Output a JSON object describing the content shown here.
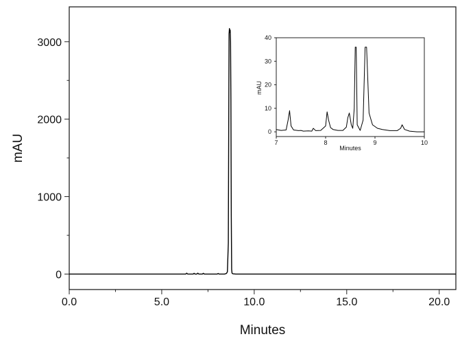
{
  "chart_data": [
    {
      "type": "line",
      "xlabel": "Minutes",
      "ylabel": "mAU",
      "xlim": [
        0,
        20.9
      ],
      "ylim": [
        -200,
        3450
      ],
      "xticks": [
        0.0,
        5.0,
        10.0,
        15.0,
        20.0
      ],
      "xtick_labels": [
        "0.0",
        "5.0",
        "10.0",
        "15.0",
        "20.0"
      ],
      "yticks": [
        0,
        1000,
        2000,
        3000
      ],
      "ytick_labels": [
        "0",
        "1000",
        "2000",
        "3000"
      ],
      "grid": false,
      "series": [
        {
          "x": [
            0.0,
            6.2,
            6.3,
            6.35,
            6.4,
            6.7,
            6.75,
            6.8,
            6.9,
            6.95,
            7.0,
            7.2,
            7.25,
            7.3,
            8.0,
            8.05,
            8.1,
            8.4,
            8.5,
            8.55,
            8.6,
            8.62,
            8.64,
            8.66,
            8.68,
            8.7,
            8.72,
            8.74,
            8.76,
            8.78,
            8.8,
            8.85,
            9.0,
            10.0,
            15.0,
            20.9
          ],
          "y": [
            0,
            0,
            0,
            12,
            0,
            0,
            10,
            0,
            0,
            12,
            0,
            0,
            10,
            0,
            0,
            8,
            0,
            0,
            8,
            30,
            400,
            1800,
            3100,
            3170,
            3120,
            3150,
            3000,
            2250,
            750,
            60,
            12,
            3,
            0,
            0,
            0,
            0
          ]
        }
      ]
    },
    {
      "type": "line",
      "xlabel": "Minutes",
      "ylabel": "mAU",
      "xlim": [
        7,
        10
      ],
      "ylim": [
        -2,
        40
      ],
      "xticks": [
        7,
        8,
        9,
        10
      ],
      "xtick_labels": [
        "7",
        "8",
        "9",
        "10"
      ],
      "yticks": [
        0,
        10,
        20,
        30,
        40
      ],
      "ytick_labels": [
        "0",
        "10",
        "20",
        "30",
        "40"
      ],
      "grid": false,
      "series": [
        {
          "x": [
            7.0,
            7.1,
            7.2,
            7.24,
            7.27,
            7.3,
            7.35,
            7.45,
            7.5,
            7.55,
            7.65,
            7.72,
            7.75,
            7.8,
            7.9,
            8.0,
            8.03,
            8.06,
            8.1,
            8.15,
            8.25,
            8.35,
            8.42,
            8.45,
            8.48,
            8.52,
            8.55,
            8.58,
            8.6,
            8.62,
            8.64,
            8.7,
            8.76,
            8.8,
            8.83,
            8.88,
            8.95,
            9.05,
            9.15,
            9.3,
            9.45,
            9.52,
            9.55,
            9.6,
            9.7,
            9.85,
            10.0
          ],
          "y": [
            1.0,
            0.6,
            0.8,
            5.0,
            9.0,
            2.5,
            0.8,
            0.5,
            0.6,
            0.3,
            0.4,
            0.3,
            1.5,
            0.5,
            0.6,
            2.5,
            8.5,
            5.0,
            1.8,
            1.0,
            0.6,
            0.6,
            2.0,
            6.0,
            8.0,
            3.0,
            1.5,
            10.0,
            36.0,
            36.0,
            3.0,
            0.6,
            5.0,
            36.0,
            36.0,
            8.0,
            3.0,
            1.5,
            1.0,
            0.5,
            0.5,
            1.5,
            3.0,
            1.0,
            0.3,
            0.0,
            0.0
          ]
        }
      ]
    }
  ]
}
